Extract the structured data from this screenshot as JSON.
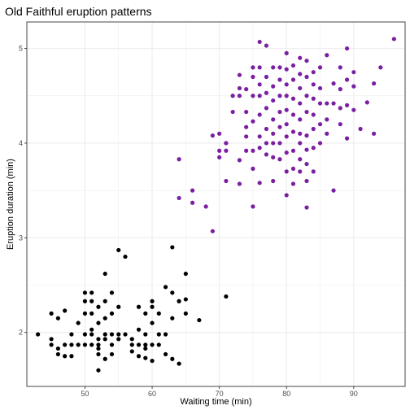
{
  "chart_data": {
    "type": "scatter",
    "title": "Old Faithful eruption patterns",
    "xlabel": "Waiting time (min)",
    "ylabel": "Eruption duration (min)",
    "xlim": [
      41.35,
      97.65
    ],
    "ylim": [
      1.43,
      5.28
    ],
    "xticks": [
      50,
      60,
      70,
      80,
      90
    ],
    "yticks": [
      2,
      3,
      4,
      5
    ],
    "grid": true,
    "legend": "none",
    "colors": {
      "cluster_short": "#000000",
      "cluster_long": "#7b1fa2",
      "grid": "#ebebeb",
      "border": "#333333"
    },
    "series": [
      {
        "color": "#000000",
        "points": [
          [
            43,
            1.98
          ],
          [
            45,
            2.2
          ],
          [
            45,
            1.93
          ],
          [
            45,
            1.87
          ],
          [
            46,
            1.83
          ],
          [
            46,
            1.77
          ],
          [
            46,
            2.15
          ],
          [
            47,
            1.75
          ],
          [
            47,
            1.87
          ],
          [
            47,
            2.23
          ],
          [
            48,
            1.75
          ],
          [
            48,
            1.87
          ],
          [
            48,
            1.98
          ],
          [
            49,
            2.1
          ],
          [
            49,
            1.87
          ],
          [
            50,
            1.87
          ],
          [
            50,
            1.98
          ],
          [
            50,
            2.2
          ],
          [
            50,
            2.33
          ],
          [
            50,
            2.42
          ],
          [
            51,
            1.87
          ],
          [
            51,
            1.98
          ],
          [
            51,
            2.03
          ],
          [
            51,
            2.2
          ],
          [
            51,
            2.42
          ],
          [
            51,
            2.33
          ],
          [
            52,
            1.83
          ],
          [
            52,
            1.87
          ],
          [
            52,
            1.93
          ],
          [
            52,
            1.77
          ],
          [
            52,
            2.1
          ],
          [
            52,
            1.6
          ],
          [
            52,
            2.27
          ],
          [
            53,
            1.93
          ],
          [
            53,
            1.98
          ],
          [
            53,
            2.15
          ],
          [
            53,
            2.33
          ],
          [
            53,
            2.62
          ],
          [
            53,
            1.72
          ],
          [
            54,
            1.87
          ],
          [
            54,
            1.77
          ],
          [
            54,
            1.98
          ],
          [
            54,
            2.2
          ],
          [
            54,
            2.42
          ],
          [
            55,
            1.98
          ],
          [
            55,
            2.27
          ],
          [
            55,
            2.87
          ],
          [
            55,
            1.93
          ],
          [
            56,
            1.98
          ],
          [
            56,
            2.8
          ],
          [
            57,
            1.8
          ],
          [
            57,
            1.87
          ],
          [
            57,
            1.93
          ],
          [
            58,
            1.75
          ],
          [
            58,
            1.87
          ],
          [
            58,
            2.03
          ],
          [
            58,
            2.27
          ],
          [
            59,
            1.87
          ],
          [
            59,
            1.98
          ],
          [
            59,
            1.73
          ],
          [
            59,
            1.83
          ],
          [
            59,
            2.2
          ],
          [
            60,
            1.7
          ],
          [
            60,
            1.87
          ],
          [
            60,
            2.1
          ],
          [
            60,
            2.27
          ],
          [
            60,
            2.33
          ],
          [
            61,
            1.87
          ],
          [
            61,
            1.98
          ],
          [
            61,
            2.2
          ],
          [
            62,
            1.77
          ],
          [
            62,
            1.98
          ],
          [
            62,
            2.48
          ],
          [
            63,
            1.72
          ],
          [
            63,
            2.15
          ],
          [
            63,
            2.42
          ],
          [
            63,
            2.9
          ],
          [
            64,
            1.67
          ],
          [
            64,
            2.33
          ],
          [
            65,
            2.2
          ],
          [
            65,
            2.35
          ],
          [
            65,
            2.62
          ],
          [
            67,
            2.13
          ],
          [
            71,
            2.38
          ]
        ]
      },
      {
        "color": "#7b1fa2",
        "points": [
          [
            64,
            3.83
          ],
          [
            64,
            3.42
          ],
          [
            66,
            3.5
          ],
          [
            66,
            3.37
          ],
          [
            68,
            3.33
          ],
          [
            69,
            3.07
          ],
          [
            69,
            4.08
          ],
          [
            70,
            4.1
          ],
          [
            70,
            3.92
          ],
          [
            70,
            3.85
          ],
          [
            71,
            4.0
          ],
          [
            71,
            3.6
          ],
          [
            71,
            3.92
          ],
          [
            71,
            4.0
          ],
          [
            72,
            4.33
          ],
          [
            72,
            4.5
          ],
          [
            73,
            3.57
          ],
          [
            73,
            3.82
          ],
          [
            73,
            4.5
          ],
          [
            73,
            4.58
          ],
          [
            73,
            4.72
          ],
          [
            74,
            3.92
          ],
          [
            74,
            4.07
          ],
          [
            74,
            4.17
          ],
          [
            74,
            4.33
          ],
          [
            74,
            4.57
          ],
          [
            75,
            3.33
          ],
          [
            75,
            3.73
          ],
          [
            75,
            3.92
          ],
          [
            75,
            4.23
          ],
          [
            75,
            4.5
          ],
          [
            75,
            4.7
          ],
          [
            75,
            4.8
          ],
          [
            76,
            3.58
          ],
          [
            76,
            3.95
          ],
          [
            76,
            4.07
          ],
          [
            76,
            4.3
          ],
          [
            76,
            4.5
          ],
          [
            76,
            4.62
          ],
          [
            76,
            4.8
          ],
          [
            76,
            5.07
          ],
          [
            77,
            3.88
          ],
          [
            77,
            4.0
          ],
          [
            77,
            4.15
          ],
          [
            77,
            4.37
          ],
          [
            77,
            4.53
          ],
          [
            77,
            4.7
          ],
          [
            77,
            5.03
          ],
          [
            78,
            3.6
          ],
          [
            78,
            3.85
          ],
          [
            78,
            4.0
          ],
          [
            78,
            4.1
          ],
          [
            78,
            4.25
          ],
          [
            78,
            4.45
          ],
          [
            78,
            4.6
          ],
          [
            78,
            4.8
          ],
          [
            79,
            3.83
          ],
          [
            79,
            4.0
          ],
          [
            79,
            4.17
          ],
          [
            79,
            4.33
          ],
          [
            79,
            4.5
          ],
          [
            79,
            4.67
          ],
          [
            79,
            4.8
          ],
          [
            80,
            3.45
          ],
          [
            80,
            3.7
          ],
          [
            80,
            3.9
          ],
          [
            80,
            4.07
          ],
          [
            80,
            4.2
          ],
          [
            80,
            4.35
          ],
          [
            80,
            4.5
          ],
          [
            80,
            4.62
          ],
          [
            80,
            4.78
          ],
          [
            80,
            4.95
          ],
          [
            81,
            3.57
          ],
          [
            81,
            3.73
          ],
          [
            81,
            3.92
          ],
          [
            81,
            4.12
          ],
          [
            81,
            4.3
          ],
          [
            81,
            4.47
          ],
          [
            81,
            4.67
          ],
          [
            81,
            4.82
          ],
          [
            82,
            3.7
          ],
          [
            82,
            3.83
          ],
          [
            82,
            4.0
          ],
          [
            82,
            4.1
          ],
          [
            82,
            4.25
          ],
          [
            82,
            4.42
          ],
          [
            82,
            4.58
          ],
          [
            82,
            4.73
          ],
          [
            82,
            4.9
          ],
          [
            83,
            3.32
          ],
          [
            83,
            3.6
          ],
          [
            83,
            3.78
          ],
          [
            83,
            3.93
          ],
          [
            83,
            4.08
          ],
          [
            83,
            4.33
          ],
          [
            83,
            4.5
          ],
          [
            83,
            4.7
          ],
          [
            83,
            4.87
          ],
          [
            84,
            3.7
          ],
          [
            84,
            3.95
          ],
          [
            84,
            4.15
          ],
          [
            84,
            4.3
          ],
          [
            84,
            4.47
          ],
          [
            84,
            4.62
          ],
          [
            84,
            4.75
          ],
          [
            85,
            4.0
          ],
          [
            85,
            4.2
          ],
          [
            85,
            4.42
          ],
          [
            85,
            4.58
          ],
          [
            85,
            4.8
          ],
          [
            86,
            4.1
          ],
          [
            86,
            4.25
          ],
          [
            86,
            4.42
          ],
          [
            86,
            4.93
          ],
          [
            87,
            3.5
          ],
          [
            87,
            4.42
          ],
          [
            87,
            4.63
          ],
          [
            88,
            4.2
          ],
          [
            88,
            4.37
          ],
          [
            88,
            4.57
          ],
          [
            88,
            4.8
          ],
          [
            89,
            4.05
          ],
          [
            89,
            4.4
          ],
          [
            89,
            4.67
          ],
          [
            89,
            5.0
          ],
          [
            90,
            4.35
          ],
          [
            90,
            4.6
          ],
          [
            90,
            4.75
          ],
          [
            91,
            4.15
          ],
          [
            92,
            4.43
          ],
          [
            93,
            4.1
          ],
          [
            93,
            4.63
          ],
          [
            94,
            4.8
          ],
          [
            96,
            5.1
          ]
        ]
      }
    ]
  }
}
